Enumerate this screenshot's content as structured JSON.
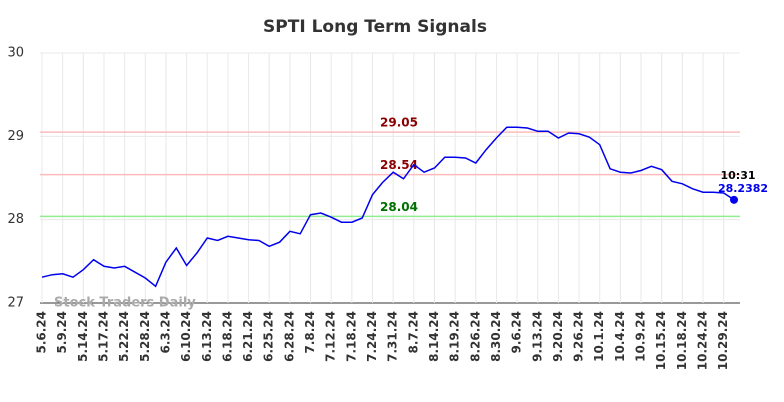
{
  "chart_data": {
    "type": "line",
    "title": "SPTI Long Term Signals",
    "categories": [
      "5.6.24",
      null,
      "5.9.24",
      null,
      "5.14.24",
      null,
      "5.17.24",
      null,
      "5.22.24",
      null,
      "5.28.24",
      null,
      "6.3.24",
      null,
      "6.10.24",
      null,
      "6.13.24",
      null,
      "6.18.24",
      null,
      "6.21.24",
      null,
      "6.25.24",
      null,
      "6.28.24",
      null,
      "7.8.24",
      null,
      "7.12.24",
      null,
      "7.18.24",
      null,
      "7.24.24",
      null,
      "7.31.24",
      null,
      "8.7.24",
      null,
      "8.14.24",
      null,
      "8.19.24",
      null,
      "8.26.24",
      null,
      "8.30.24",
      null,
      "9.6.24",
      null,
      "9.13.24",
      null,
      "9.20.24",
      null,
      "9.26.24",
      null,
      "10.1.24",
      null,
      "10.4.24",
      null,
      "10.9.24",
      null,
      "10.15.24",
      null,
      "10.18.24",
      null,
      "10.24.24",
      null,
      "10.29.24",
      null
    ],
    "series": [
      {
        "name": "SPTI",
        "color": "#0000ee",
        "values": [
          27.31,
          27.34,
          27.35,
          27.31,
          27.4,
          27.52,
          27.44,
          27.42,
          27.44,
          27.37,
          27.3,
          27.2,
          27.49,
          27.66,
          27.45,
          27.6,
          27.78,
          27.75,
          27.8,
          27.78,
          27.76,
          27.75,
          27.68,
          27.73,
          27.86,
          27.83,
          28.06,
          28.08,
          28.03,
          27.97,
          27.97,
          28.02,
          28.3,
          28.45,
          28.57,
          28.49,
          28.66,
          28.57,
          28.62,
          28.75,
          28.75,
          28.74,
          28.68,
          28.84,
          28.98,
          29.11,
          29.11,
          29.1,
          29.06,
          29.06,
          28.98,
          29.04,
          29.03,
          28.99,
          28.9,
          28.61,
          28.57,
          28.56,
          28.59,
          28.64,
          28.6,
          28.46,
          28.43,
          28.37,
          28.33,
          28.33,
          28.32,
          28.2382
        ]
      }
    ],
    "hlines": [
      {
        "value": 29.05,
        "label": "29.05",
        "color": "#ffbbbb",
        "text_color": "#8b0000"
      },
      {
        "value": 28.54,
        "label": "28.54",
        "color": "#ffbbbb",
        "text_color": "#8b0000"
      },
      {
        "value": 28.04,
        "label": "28.04",
        "color": "#90ee90",
        "text_color": "#007000"
      }
    ],
    "last_time": "10:31",
    "watermark": "Stock Traders Daily",
    "ylim": [
      27,
      30
    ],
    "yticks": [
      27,
      28,
      29,
      30
    ],
    "grid": true
  }
}
